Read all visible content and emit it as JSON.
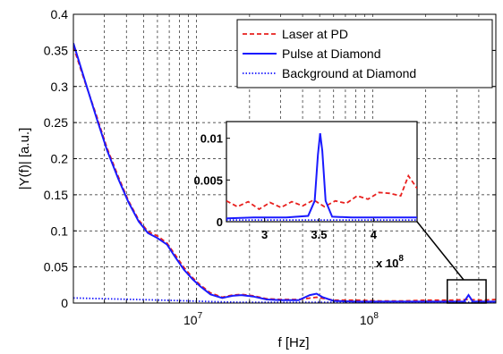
{
  "chart_data": [
    {
      "type": "line",
      "xlabel": "f [Hz]",
      "ylabel": "|Y(f)| [a.u.]",
      "x_scale": "log",
      "xlim": [
        2000000,
        500000000
      ],
      "ylim": [
        0,
        0.4
      ],
      "x_ticks": [
        {
          "value": 10000000,
          "base": "10",
          "exp": "7"
        },
        {
          "value": 100000000,
          "base": "10",
          "exp": "8"
        }
      ],
      "y_ticks": [
        {
          "value": 0,
          "label": "0"
        },
        {
          "value": 0.05,
          "label": "0.05"
        },
        {
          "value": 0.1,
          "label": "0.1"
        },
        {
          "value": 0.15,
          "label": "0.15"
        },
        {
          "value": 0.2,
          "label": "0.2"
        },
        {
          "value": 0.25,
          "label": "0.25"
        },
        {
          "value": 0.3,
          "label": "0.3"
        },
        {
          "value": 0.35,
          "label": "0.35"
        },
        {
          "value": 0.4,
          "label": "0.4"
        }
      ],
      "grid": true,
      "legend_position": "top-right",
      "series": [
        {
          "name": "Laser at PD",
          "color": "#e8201e",
          "style": "dashed",
          "x": [
            2000000,
            2300000,
            2700000,
            3100000,
            3600000,
            4100000,
            4700000,
            5300000,
            6000000,
            6800000,
            7600000,
            8500000,
            9500000,
            10500000,
            12000000,
            14000000,
            16000000,
            18000000,
            21000000,
            25000000,
            30000000,
            38000000,
            48000000,
            60000000,
            80000000,
            110000000,
            150000000,
            200000000,
            280000000,
            350000000,
            420000000,
            500000000
          ],
          "y": [
            0.355,
            0.31,
            0.26,
            0.215,
            0.175,
            0.142,
            0.115,
            0.099,
            0.093,
            0.083,
            0.066,
            0.049,
            0.035,
            0.025,
            0.014,
            0.008,
            0.011,
            0.012,
            0.01,
            0.006,
            0.005,
            0.005,
            0.008,
            0.004,
            0.004,
            0.003,
            0.003,
            0.004,
            0.004,
            0.005,
            0.004,
            0.005
          ]
        },
        {
          "name": "Pulse at Diamond",
          "color": "#1a1aff",
          "style": "solid",
          "x": [
            2000000,
            2300000,
            2700000,
            3100000,
            3600000,
            4100000,
            4700000,
            5300000,
            6000000,
            6800000,
            7600000,
            8500000,
            9500000,
            10500000,
            12000000,
            14000000,
            16000000,
            18000000,
            21000000,
            25000000,
            30000000,
            38000000,
            44000000,
            48000000,
            52000000,
            60000000,
            80000000,
            110000000,
            150000000,
            200000000,
            280000000,
            330000000,
            350000000,
            370000000,
            420000000,
            500000000
          ],
          "y": [
            0.36,
            0.312,
            0.257,
            0.212,
            0.172,
            0.14,
            0.113,
            0.097,
            0.09,
            0.081,
            0.063,
            0.046,
            0.033,
            0.023,
            0.012,
            0.007,
            0.01,
            0.011,
            0.009,
            0.005,
            0.004,
            0.004,
            0.011,
            0.013,
            0.008,
            0.003,
            0.002,
            0.002,
            0.002,
            0.002,
            0.002,
            0.002,
            0.011,
            0.002,
            0.002,
            0.002
          ]
        },
        {
          "name": "Background at Diamond",
          "color": "#1a1aff",
          "style": "dotted",
          "x": [
            2000000,
            3000000,
            4500000,
            6500000,
            9000000,
            12000000,
            18000000,
            30000000,
            60000000,
            120000000,
            250000000,
            500000000
          ],
          "y": [
            0.007,
            0.006,
            0.005,
            0.004,
            0.003,
            0.002,
            0.001,
            0.001,
            0.001,
            0.001,
            0.001,
            0.001
          ]
        }
      ]
    },
    {
      "type": "line",
      "inset": true,
      "xlim": [
        265000000,
        440000000
      ],
      "ylim": [
        0,
        0.012
      ],
      "x_ticks": [
        {
          "value": 300000000,
          "label": "3"
        },
        {
          "value": 350000000,
          "label": "3.5"
        },
        {
          "value": 400000000,
          "label": "4"
        }
      ],
      "x_multiplier": {
        "base": "x 10",
        "exp": "8"
      },
      "y_ticks": [
        {
          "value": 0,
          "label": "0"
        },
        {
          "value": 0.005,
          "label": "0.005"
        },
        {
          "value": 0.01,
          "label": "0.01"
        }
      ],
      "series": [
        {
          "name": "Laser at PD",
          "color": "#e8201e",
          "style": "dashed",
          "x": [
            265000000,
            275000000,
            285000000,
            295000000,
            305000000,
            315000000,
            325000000,
            335000000,
            345000000,
            355000000,
            365000000,
            375000000,
            385000000,
            395000000,
            405000000,
            415000000,
            425000000,
            432000000,
            440000000
          ],
          "y": [
            0.0025,
            0.0018,
            0.0024,
            0.0015,
            0.0023,
            0.0017,
            0.0024,
            0.0019,
            0.0026,
            0.0018,
            0.0025,
            0.0022,
            0.0031,
            0.0027,
            0.0035,
            0.0034,
            0.0031,
            0.0055,
            0.004
          ]
        },
        {
          "name": "Pulse at Diamond",
          "color": "#1a1aff",
          "style": "solid",
          "x": [
            265000000,
            290000000,
            320000000,
            340000000,
            346000000,
            349000000,
            351000000,
            353000000,
            356000000,
            362000000,
            380000000,
            410000000,
            440000000
          ],
          "y": [
            0.0004,
            0.0005,
            0.0005,
            0.0007,
            0.0025,
            0.008,
            0.0106,
            0.0085,
            0.0025,
            0.0006,
            0.0005,
            0.0005,
            0.0005
          ]
        },
        {
          "name": "Background at Diamond",
          "color": "#1a1aff",
          "style": "dotted",
          "x": [
            265000000,
            300000000,
            350000000,
            400000000,
            440000000
          ],
          "y": [
            0.0002,
            0.0002,
            0.0002,
            0.0002,
            0.0002
          ]
        }
      ]
    }
  ]
}
